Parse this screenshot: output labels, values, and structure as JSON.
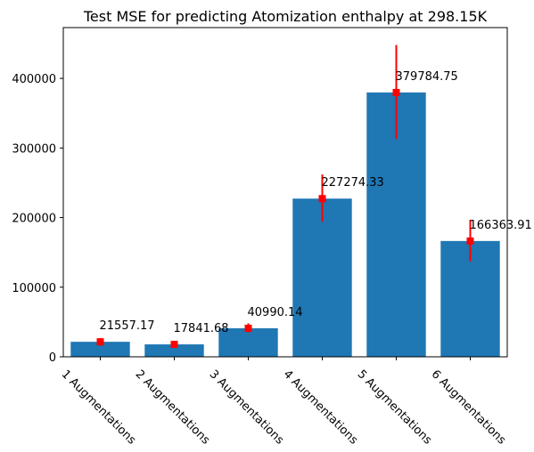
{
  "chart_data": {
    "type": "bar",
    "title": "Test MSE for predicting Atomization enthalpy at 298.15K",
    "xlabel": "",
    "ylabel": "",
    "categories": [
      "1 Augmentations",
      "2 Augmentations",
      "3 Augmentations",
      "4 Augmentations",
      "5 Augmentations",
      "6 Augmentations"
    ],
    "values": [
      21557.17,
      17841.68,
      40990.14,
      227274.33,
      379784.75,
      166363.91
    ],
    "value_labels": [
      "21557.17",
      "17841.68",
      "40990.14",
      "227274.33",
      "379784.75",
      "166363.91"
    ],
    "error_bars": [
      {
        "low": 16000,
        "high": 27000
      },
      {
        "low": 13000,
        "high": 22000
      },
      {
        "low": 35000,
        "high": 48000
      },
      {
        "low": 194000,
        "high": 262000
      },
      {
        "low": 313000,
        "high": 448000
      },
      {
        "low": 137000,
        "high": 197000
      }
    ],
    "ylim": [
      0,
      473000
    ],
    "yticks": [
      0,
      100000,
      200000,
      300000,
      400000
    ],
    "ytick_labels": [
      "0",
      "100000",
      "200000",
      "300000",
      "400000"
    ],
    "grid": false,
    "colors": {
      "bar": "#1f77b4",
      "marker": "#ff0000",
      "error": "#ff0000"
    }
  }
}
